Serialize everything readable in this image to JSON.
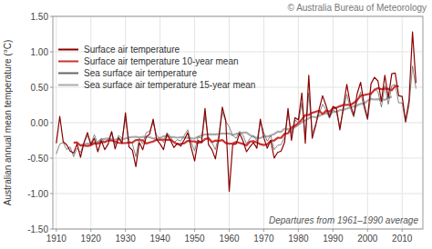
{
  "chart_data": {
    "type": "line",
    "title": "© Australia Bureau of Meteorology",
    "y_label": "Australian annual mean temperature (°C)",
    "annotations": [
      "Departures from 1961–1990 average"
    ],
    "grid": true,
    "legend": "upper left",
    "xlim": [
      1909,
      2016
    ],
    "xticks": [
      1910,
      1920,
      1930,
      1940,
      1950,
      1960,
      1970,
      1980,
      1990,
      2000,
      2010
    ],
    "ylim": [
      -1.5,
      1.5
    ],
    "yticks": [
      {
        "value": -1.5,
        "label": "-1.50"
      },
      {
        "value": -1.0,
        "label": "-1.00"
      },
      {
        "value": -0.5,
        "label": "-0.50"
      },
      {
        "value": 0.0,
        "label": "0.00"
      },
      {
        "value": 0.5,
        "label": "0.50"
      },
      {
        "value": 1.0,
        "label": "1.00"
      },
      {
        "value": 1.5,
        "label": "1.50"
      }
    ],
    "x": [
      1910,
      1911,
      1912,
      1913,
      1914,
      1915,
      1916,
      1917,
      1918,
      1919,
      1920,
      1921,
      1922,
      1923,
      1924,
      1925,
      1926,
      1927,
      1928,
      1929,
      1930,
      1931,
      1932,
      1933,
      1934,
      1935,
      1936,
      1937,
      1938,
      1939,
      1940,
      1941,
      1942,
      1943,
      1944,
      1945,
      1946,
      1947,
      1948,
      1949,
      1950,
      1951,
      1952,
      1953,
      1954,
      1955,
      1956,
      1957,
      1958,
      1959,
      1960,
      1961,
      1962,
      1963,
      1964,
      1965,
      1966,
      1967,
      1968,
      1969,
      1970,
      1971,
      1972,
      1973,
      1974,
      1975,
      1976,
      1977,
      1978,
      1979,
      1980,
      1981,
      1982,
      1983,
      1984,
      1985,
      1986,
      1987,
      1988,
      1989,
      1990,
      1991,
      1992,
      1993,
      1994,
      1995,
      1996,
      1997,
      1998,
      1999,
      2000,
      2001,
      2002,
      2003,
      2004,
      2005,
      2006,
      2007,
      2008,
      2009,
      2010,
      2011,
      2012,
      2013,
      2014
    ],
    "series": [
      {
        "name": "Surface air temperature",
        "color": "#8B0000",
        "values": [
          -0.29,
          0.09,
          -0.27,
          -0.31,
          -0.4,
          -0.43,
          -0.3,
          -0.49,
          -0.28,
          -0.14,
          -0.31,
          -0.22,
          -0.41,
          -0.25,
          -0.38,
          -0.3,
          -0.13,
          -0.37,
          -0.21,
          -0.29,
          0.14,
          -0.34,
          -0.39,
          -0.62,
          -0.28,
          -0.38,
          -0.2,
          -0.16,
          0.05,
          -0.24,
          -0.3,
          -0.38,
          -0.16,
          -0.25,
          -0.35,
          -0.29,
          -0.33,
          -0.24,
          -0.14,
          -0.35,
          -0.54,
          -0.25,
          -0.28,
          0.2,
          -0.31,
          -0.38,
          -0.51,
          -0.22,
          0.22,
          0.03,
          -0.97,
          -0.31,
          -0.3,
          -0.15,
          -0.26,
          -0.41,
          -0.34,
          -0.28,
          -0.36,
          0.05,
          -0.21,
          -0.36,
          -0.25,
          -0.5,
          -0.42,
          -0.4,
          -0.28,
          0.2,
          -0.25,
          0.07,
          0.04,
          0.42,
          -0.29,
          0.67,
          -0.22,
          -0.04,
          0.19,
          0.38,
          0.24,
          0.08,
          0.23,
          0.2,
          -0.1,
          0.22,
          0.54,
          0.26,
          0.1,
          0.41,
          0.57,
          0.26,
          0.06,
          0.55,
          0.64,
          0.59,
          0.3,
          0.67,
          0.35,
          0.69,
          0.7,
          0.38,
          0.37,
          0.02,
          0.32,
          1.28,
          0.56
        ]
      },
      {
        "name": "Surface air temperature 10-year mean",
        "color": "#CC3333",
        "values": [
          null,
          null,
          null,
          null,
          null,
          -0.2845,
          -0.2782,
          -0.3236,
          -0.3218,
          -0.3282,
          -0.3191,
          -0.2918,
          -0.2982,
          -0.2727,
          -0.2736,
          -0.2482,
          -0.2509,
          -0.2664,
          -0.2855,
          -0.2882,
          -0.2882,
          -0.2791,
          -0.2818,
          -0.2436,
          -0.2464,
          -0.2473,
          -0.2945,
          -0.2782,
          -0.2655,
          -0.2409,
          -0.2418,
          -0.2373,
          -0.2409,
          -0.2391,
          -0.2755,
          -0.3027,
          -0.2982,
          -0.2891,
          -0.2564,
          -0.2618,
          -0.2645,
          -0.2845,
          -0.2745,
          -0.2327,
          -0.2173,
          -0.2736,
          -0.2527,
          -0.2573,
          -0.2455,
          -0.2873,
          -0.2964,
          -0.2927,
          -0.2718,
          -0.2845,
          -0.3,
          -0.3218,
          -0.2664,
          -0.2609,
          -0.2791,
          -0.3036,
          -0.3164,
          -0.3045,
          -0.2555,
          -0.2527,
          -0.2136,
          -0.2145,
          -0.1573,
          -0.1509,
          -0.0673,
          -0.0418,
          -0.0073,
          0.0464,
          0.1064,
          0.11,
          0.14,
          0.1545,
          0.1691,
          0.1218,
          0.1682,
          0.1564,
          0.2,
          0.2127,
          0.2327,
          0.25,
          0.2518,
          0.25,
          0.2791,
          0.3191,
          0.3818,
          0.3891,
          0.4009,
          0.4091,
          0.4627,
          0.4891,
          0.4718,
          0.4818,
          0.4782,
          0.4573,
          0.5155,
          0.5127,
          null,
          null,
          null,
          null,
          null
        ]
      },
      {
        "name": "Sea surface air temperature",
        "color": "#666666",
        "values": [
          -0.44,
          -0.3,
          -0.28,
          -0.38,
          -0.34,
          -0.48,
          -0.36,
          -0.42,
          -0.29,
          -0.18,
          -0.3,
          -0.17,
          -0.3,
          -0.22,
          -0.28,
          -0.26,
          -0.12,
          -0.31,
          -0.18,
          -0.22,
          0.05,
          -0.25,
          -0.3,
          -0.48,
          -0.22,
          -0.3,
          -0.14,
          -0.12,
          0.0,
          -0.18,
          -0.22,
          -0.28,
          -0.14,
          -0.2,
          -0.28,
          -0.24,
          -0.26,
          -0.18,
          -0.1,
          -0.27,
          -0.4,
          -0.2,
          -0.22,
          0.1,
          -0.24,
          -0.28,
          -0.38,
          -0.18,
          0.15,
          0.02,
          -0.06,
          -0.18,
          -0.22,
          -0.12,
          -0.18,
          -0.3,
          -0.22,
          -0.18,
          -0.26,
          0.02,
          -0.14,
          -0.26,
          -0.18,
          -0.38,
          -0.32,
          -0.31,
          -0.2,
          0.14,
          -0.16,
          0.04,
          0.0,
          0.28,
          -0.2,
          0.42,
          -0.16,
          -0.02,
          0.13,
          0.26,
          0.18,
          0.06,
          0.18,
          0.15,
          -0.06,
          0.17,
          0.4,
          0.2,
          0.08,
          0.3,
          0.43,
          0.2,
          0.04,
          0.4,
          0.48,
          0.44,
          0.22,
          0.52,
          0.26,
          0.52,
          0.54,
          0.28,
          0.28,
          0.0,
          0.24,
          0.8,
          0.48
        ]
      },
      {
        "name": "Sea surface air temperature 15-year mean",
        "color": "#AAAAAA",
        "values": [
          null,
          null,
          null,
          null,
          null,
          null,
          null,
          -0.316,
          -0.304,
          -0.292,
          -0.294,
          -0.2807,
          -0.2727,
          -0.2373,
          -0.23,
          -0.222,
          -0.2347,
          -0.2373,
          -0.2373,
          -0.2353,
          -0.2233,
          -0.2087,
          -0.202,
          -0.1993,
          -0.21,
          -0.1987,
          -0.2,
          -0.204,
          -0.2233,
          -0.224,
          -0.216,
          -0.1907,
          -0.194,
          -0.2007,
          -0.2047,
          -0.2113,
          -0.2047,
          -0.2087,
          -0.2127,
          -0.2193,
          -0.222,
          -0.1987,
          -0.1787,
          -0.1667,
          -0.1613,
          -0.164,
          -0.1653,
          -0.1593,
          -0.1527,
          -0.154,
          -0.1513,
          -0.1753,
          -0.158,
          -0.1487,
          -0.1407,
          -0.1407,
          -0.176,
          -0.1987,
          -0.2153,
          -0.2167,
          -0.1927,
          -0.1953,
          -0.1807,
          -0.1607,
          -0.1273,
          -0.1287,
          -0.0833,
          -0.0953,
          -0.0873,
          -0.0613,
          -0.032,
          0.0053,
          0.0307,
          0.0633,
          0.0867,
          0.0733,
          0.0953,
          0.1193,
          0.1327,
          0.1193,
          0.1527,
          0.1533,
          0.1773,
          0.1813,
          0.1993,
          0.214,
          0.2313,
          0.242,
          0.2647,
          0.272,
          0.3107,
          0.3353,
          0.3273,
          0.3327,
          0.3273,
          0.3233,
          0.348,
          0.3667,
          null,
          null,
          null,
          null,
          null,
          null,
          null
        ]
      }
    ]
  }
}
